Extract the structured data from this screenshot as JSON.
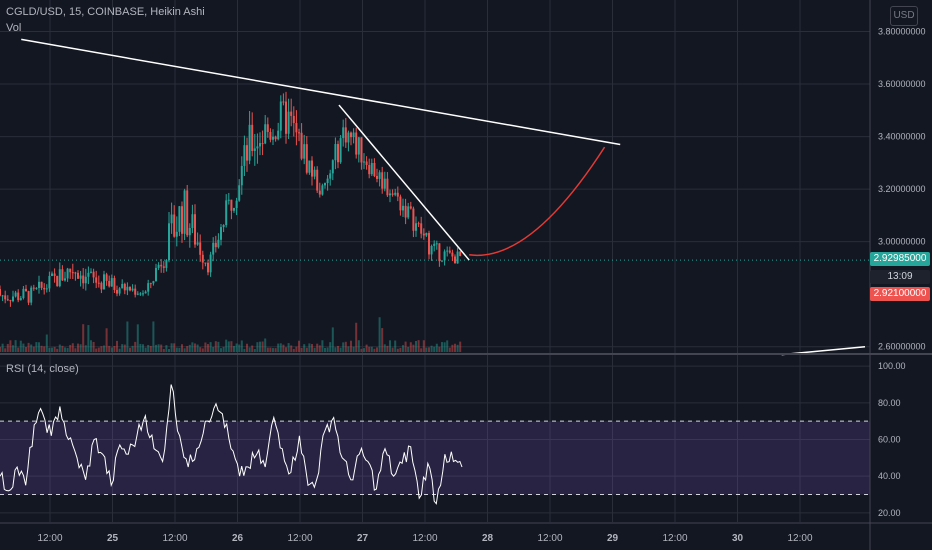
{
  "header": {
    "symbol_line": "CGLD/USD, 15, COINBASE, Heikin Ashi",
    "volume_label": "Vol",
    "currency_button": "USD"
  },
  "rsi_panel": {
    "label": "RSI (14, close)"
  },
  "price_tags": {
    "last_price": "2.92985000",
    "countdown": "13:09",
    "low_price": "2.92100000"
  },
  "colors": {
    "background": "#131722",
    "grid": "#2a2e39",
    "up": "#26a69a",
    "down": "#ef5350",
    "rsi_line": "#ffffff",
    "rsi_band": "#7e57c2",
    "trendline": "#ffffff",
    "projection": "#e53935"
  },
  "chart_data": [
    {
      "type": "candlestick",
      "title": "CGLD/USD, 15, COINBASE, Heikin Ashi",
      "y_ticks": [
        "3.80000000",
        "3.60000000",
        "3.40000000",
        "3.20000000",
        "3.00000000",
        "2.60000000"
      ],
      "ylim": [
        2.58,
        3.92
      ],
      "x_ticks": [
        "12:00",
        "25",
        "12:00",
        "26",
        "12:00",
        "27",
        "12:00",
        "28",
        "12:00",
        "29",
        "12:00",
        "30",
        "12:00"
      ],
      "last_price": 2.92985,
      "session_low": 2.921,
      "candles_approx": [
        {
          "t": "24 08:00",
          "o": 2.82,
          "h": 2.86,
          "l": 2.74,
          "c": 2.77
        },
        {
          "t": "24 16:00",
          "o": 2.85,
          "h": 3.0,
          "l": 2.82,
          "c": 2.95
        },
        {
          "t": "24 20:00",
          "o": 2.9,
          "h": 2.93,
          "l": 2.78,
          "c": 2.8
        },
        {
          "t": "25 06:00",
          "o": 2.8,
          "h": 2.84,
          "l": 2.77,
          "c": 2.81
        },
        {
          "t": "25 13:00",
          "o": 3.0,
          "h": 3.35,
          "l": 2.98,
          "c": 3.25
        },
        {
          "t": "25 18:00",
          "o": 2.92,
          "h": 2.98,
          "l": 2.86,
          "c": 2.9
        },
        {
          "t": "26 02:00",
          "o": 3.3,
          "h": 3.51,
          "l": 3.2,
          "c": 3.45
        },
        {
          "t": "26 09:00",
          "o": 3.45,
          "h": 3.6,
          "l": 3.3,
          "c": 3.5
        },
        {
          "t": "26 16:00",
          "o": 3.15,
          "h": 3.25,
          "l": 3.1,
          "c": 3.2
        },
        {
          "t": "26 20:00",
          "o": 3.4,
          "h": 3.52,
          "l": 3.3,
          "c": 3.46
        },
        {
          "t": "27 02:00",
          "o": 3.25,
          "h": 3.35,
          "l": 3.2,
          "c": 3.28
        },
        {
          "t": "27 08:00",
          "o": 3.1,
          "h": 3.2,
          "l": 3.05,
          "c": 3.14
        },
        {
          "t": "27 13:00",
          "o": 2.98,
          "h": 3.03,
          "l": 2.9,
          "c": 2.95
        },
        {
          "t": "27 17:00",
          "o": 2.95,
          "h": 3.02,
          "l": 2.92,
          "c": 2.93
        }
      ],
      "trendlines": [
        {
          "from": {
            "t": "24 06:00",
            "price": 3.77
          },
          "to": {
            "t": "29 01:00",
            "price": 3.37
          }
        },
        {
          "from": {
            "t": "26 19:00",
            "price": 3.52
          },
          "to": {
            "t": "27 20:00",
            "price": 2.93
          }
        },
        {
          "from": {
            "t": "30 08:00",
            "price": 2.57
          },
          "to": {
            "t": "31 00:00",
            "price": 2.6
          }
        }
      ],
      "projection": {
        "from": {
          "t": "27 20:00",
          "price": 2.95
        },
        "to": {
          "t": "28 22:00",
          "price": 3.36
        }
      }
    },
    {
      "type": "line",
      "title": "RSI (14, close)",
      "y_ticks": [
        "100.00",
        "80.00",
        "60.00",
        "40.00",
        "20.00"
      ],
      "ylim": [
        15,
        105
      ],
      "band": [
        30,
        70
      ],
      "series": [
        {
          "values_approx": [
            40,
            32,
            45,
            35,
            68,
            74,
            62,
            78,
            60,
            50,
            38,
            60,
            52,
            35,
            57,
            52,
            62,
            73,
            55,
            48,
            90,
            62,
            45,
            55,
            70,
            77,
            74,
            55,
            40,
            45,
            52,
            45,
            72,
            55,
            42,
            62,
            35,
            38,
            65,
            72,
            50,
            38,
            52,
            48,
            33,
            55,
            40,
            47,
            56,
            28,
            47,
            25,
            52,
            48,
            45
          ]
        }
      ]
    }
  ]
}
